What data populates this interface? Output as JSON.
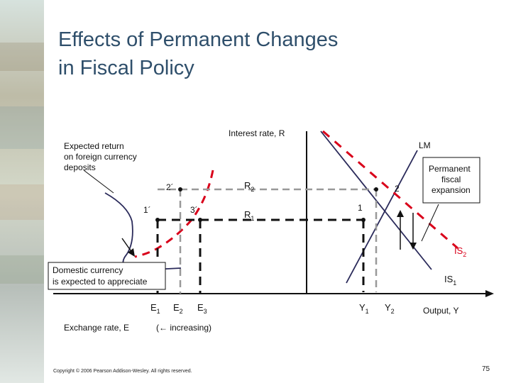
{
  "slide": {
    "title_line1": "Effects of Permanent Changes",
    "title_line2": "in Fiscal Policy",
    "copyright": "Copyright © 2006 Pearson Addison-Wesley. All rights reserved.",
    "slide_number": "75"
  },
  "diagram": {
    "interest_axis_label": "Interest rate, R",
    "output_axis_label": "Output, Y",
    "exchange_axis_label": "Exchange rate, E",
    "increasing_label": "(← increasing)",
    "expected_return_line1": "Expected return",
    "expected_return_line2": "on foreign currency",
    "expected_return_line3": "deposits",
    "lm_label": "LM",
    "fiscal_line1": "Permanent",
    "fiscal_line2": "fiscal",
    "fiscal_line3": "expansion",
    "domestic_line1": "Domestic currency",
    "domestic_line2": "is expected to appreciate",
    "is2_main": "IS",
    "is2_sub": "2",
    "is1_main": "IS",
    "is1_sub": "1",
    "r2_main": "R",
    "r2_sub": "2",
    "r1_main": "R",
    "r1_sub": "1",
    "y1_main": "Y",
    "y1_sub": "1",
    "y2_main": "Y",
    "y2_sub": "2",
    "e1_main": "E",
    "e1_sub": "1",
    "e2_main": "E",
    "e2_sub": "2",
    "e3_main": "E",
    "e3_sub": "3",
    "pt_2prime": "2´",
    "pt_1prime": "1´",
    "pt_3prime": "3´",
    "pt_1": "1",
    "pt_2": "2",
    "colors": {
      "dash_red": "#d9001a",
      "curve_blue": "#2a2a5a",
      "axis": "#111111"
    }
  }
}
